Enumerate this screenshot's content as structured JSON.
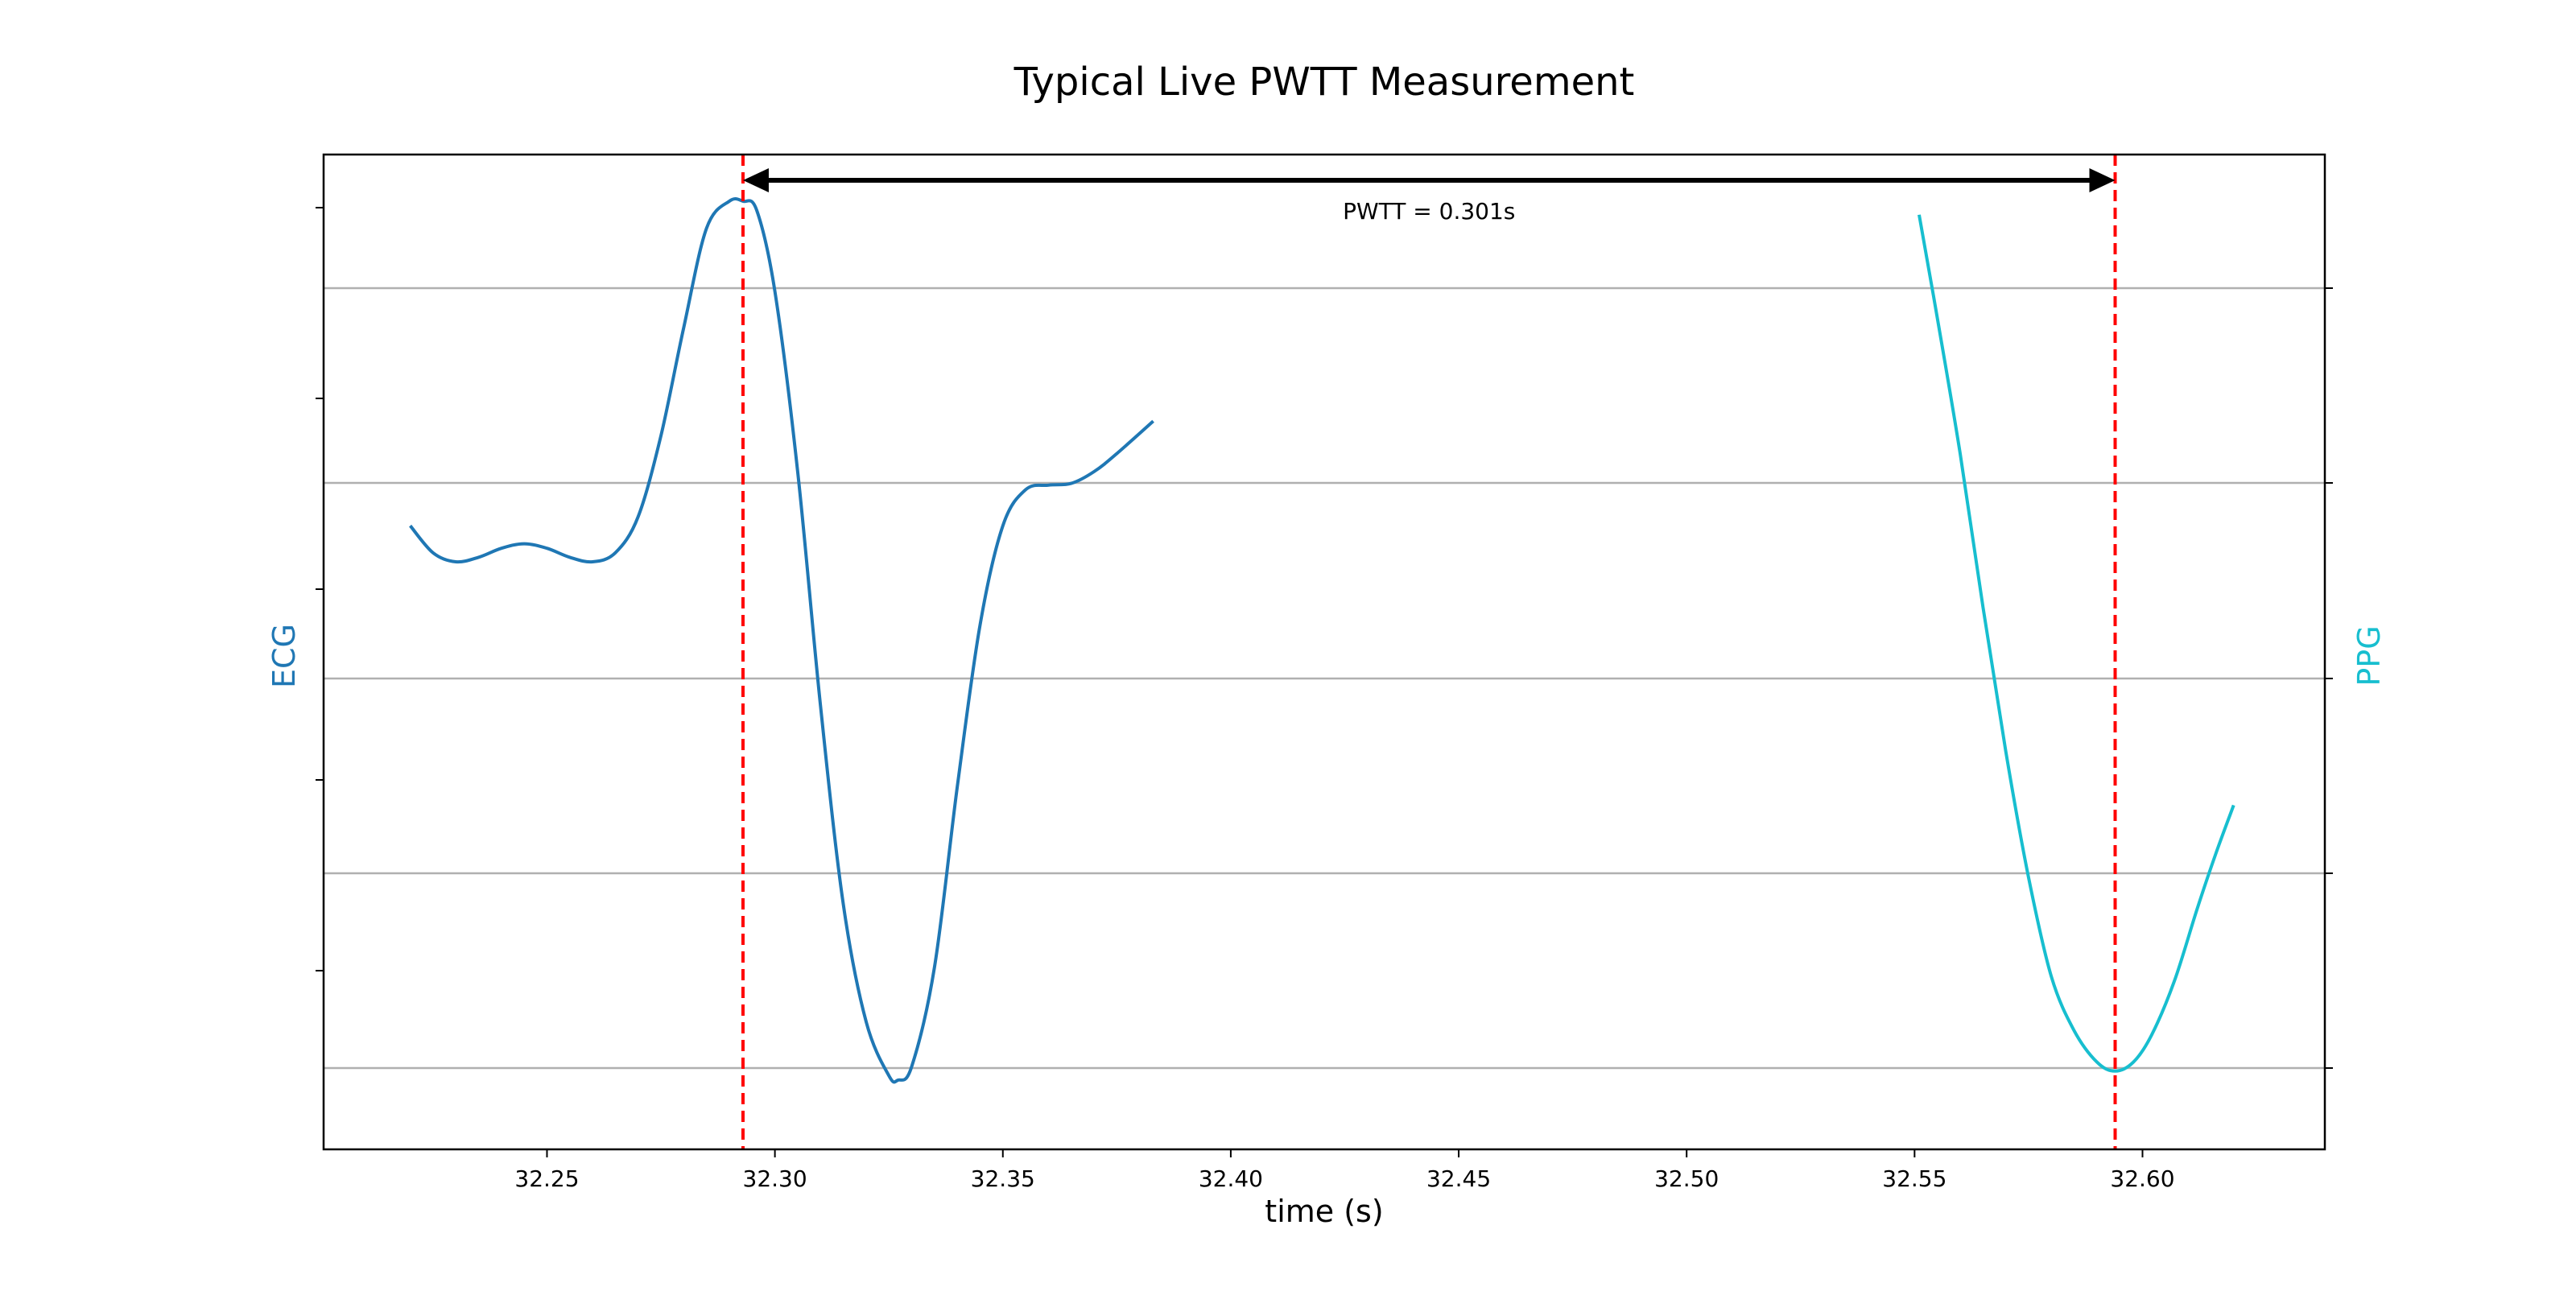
{
  "chart_data": {
    "type": "line",
    "title": "Typical Live PWTT Measurement",
    "xlabel": "time (s)",
    "ylabel_left": "ECG",
    "ylabel_right": "PPG",
    "xlim": [
      32.201,
      32.64
    ],
    "x_ticks": [
      32.25,
      32.3,
      32.35,
      32.4,
      32.45,
      32.5,
      32.55,
      32.6
    ],
    "x_tick_labels": [
      "32.25",
      "32.30",
      "32.35",
      "32.40",
      "32.45",
      "32.50",
      "32.55",
      "32.60"
    ],
    "y_left_tick_labels_visible": false,
    "y_right_tick_labels_visible": false,
    "grid": "horizontal",
    "ylim": [
      0,
      1
    ],
    "series": [
      {
        "name": "ECG",
        "axis": "left",
        "color": "#1f77b4",
        "x": [
          32.22,
          32.225,
          32.23,
          32.235,
          32.24,
          32.245,
          32.25,
          32.255,
          32.26,
          32.265,
          32.27,
          32.275,
          32.28,
          32.285,
          32.29,
          32.293,
          32.296,
          32.3,
          32.305,
          32.31,
          32.315,
          32.32,
          32.325,
          32.327,
          32.33,
          32.335,
          32.34,
          32.345,
          32.35,
          32.355,
          32.36,
          32.365,
          32.37,
          32.375,
          32.383
        ],
        "y": [
          0.64,
          0.61,
          0.6,
          0.605,
          0.615,
          0.62,
          0.615,
          0.605,
          0.6,
          0.61,
          0.65,
          0.74,
          0.86,
          0.97,
          1.0,
          1.0,
          0.99,
          0.9,
          0.7,
          0.44,
          0.22,
          0.09,
          0.03,
          0.025,
          0.04,
          0.15,
          0.35,
          0.53,
          0.64,
          0.68,
          0.685,
          0.687,
          0.7,
          0.72,
          0.756
        ]
      },
      {
        "name": "PPG",
        "axis": "right",
        "color": "#17becf",
        "x": [
          32.551,
          32.555,
          32.56,
          32.565,
          32.57,
          32.575,
          32.58,
          32.585,
          32.59,
          32.594,
          32.598,
          32.602,
          32.607,
          32.612,
          32.616,
          32.62
        ],
        "y": [
          0.985,
          0.87,
          0.72,
          0.55,
          0.39,
          0.25,
          0.14,
          0.08,
          0.045,
          0.035,
          0.045,
          0.075,
          0.135,
          0.215,
          0.275,
          0.33
        ]
      }
    ],
    "markers": [
      {
        "name": "ECG peak",
        "x": 32.293,
        "color": "#ff0000",
        "style": "dashed"
      },
      {
        "name": "PPG foot",
        "x": 32.594,
        "color": "#ff0000",
        "style": "dashed"
      }
    ],
    "annotation": {
      "text": "PWTT = 0.301s",
      "x_start": 32.293,
      "x_end": 32.594,
      "style": "double-arrow"
    }
  }
}
